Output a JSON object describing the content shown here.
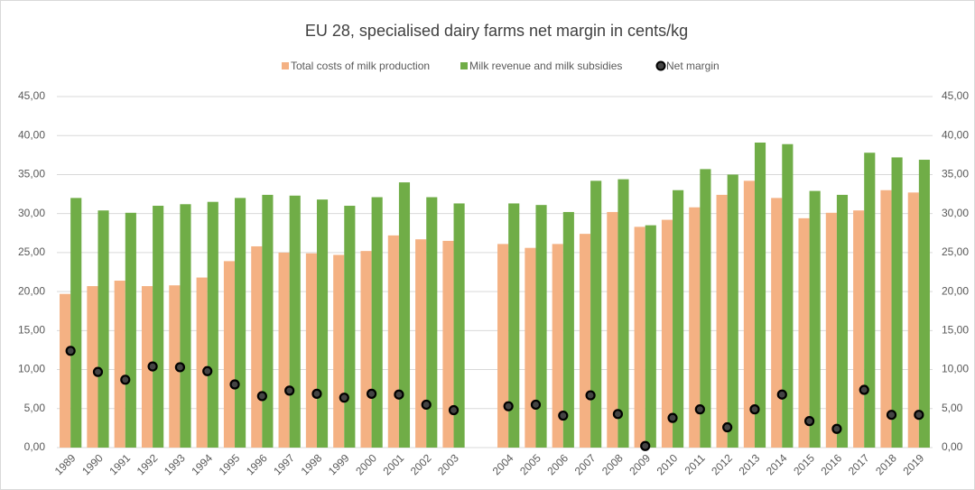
{
  "chart_data": {
    "type": "bar",
    "title": "EU 28, specialised dairy farms net margin in cents/kg",
    "categories": [
      "1989",
      "1990",
      "1991",
      "1992",
      "1993",
      "1994",
      "1995",
      "1996",
      "1997",
      "1998",
      "1999",
      "2000",
      "2001",
      "2002",
      "2003",
      null,
      "2004",
      "2005",
      "2006",
      "2007",
      "2008",
      "2009",
      "2010",
      "2011",
      "2012",
      "2013",
      "2014",
      "2015",
      "2016",
      "2017",
      "2018",
      "2019"
    ],
    "series": [
      {
        "name": "Total costs of milk production",
        "color": "#f4b183",
        "type": "bar",
        "values": [
          19.7,
          20.7,
          21.4,
          20.7,
          20.8,
          21.8,
          23.9,
          25.8,
          25.0,
          24.9,
          24.7,
          25.2,
          27.2,
          26.7,
          26.5,
          null,
          26.1,
          25.6,
          26.1,
          27.4,
          30.2,
          28.3,
          29.2,
          30.8,
          32.4,
          34.2,
          32.0,
          29.4,
          30.1,
          30.4,
          33.0,
          32.7
        ]
      },
      {
        "name": "Milk revenue and milk subsidies",
        "color": "#70ad47",
        "type": "bar",
        "values": [
          32.0,
          30.4,
          30.1,
          31.0,
          31.2,
          31.5,
          32.0,
          32.4,
          32.3,
          31.8,
          31.0,
          32.1,
          34.0,
          32.1,
          31.3,
          null,
          31.3,
          31.1,
          30.2,
          34.2,
          34.4,
          28.5,
          33.0,
          35.7,
          35.0,
          39.1,
          38.9,
          32.9,
          32.4,
          37.8,
          37.2,
          36.9
        ]
      },
      {
        "name": "Net margin",
        "color": "#000000",
        "type": "scatter",
        "axis": "y2",
        "values": [
          12.4,
          9.7,
          8.7,
          10.4,
          10.3,
          9.8,
          8.1,
          6.6,
          7.3,
          6.9,
          6.4,
          6.9,
          6.8,
          5.5,
          4.8,
          null,
          5.3,
          5.5,
          4.1,
          6.7,
          4.3,
          0.2,
          3.8,
          4.9,
          2.6,
          4.9,
          6.8,
          3.4,
          2.4,
          7.4,
          4.2,
          4.2
        ]
      }
    ],
    "ylim": [
      0,
      45
    ],
    "yticks": [
      {
        "value": 0,
        "label": "0,00"
      },
      {
        "value": 5,
        "label": "5,00"
      },
      {
        "value": 10,
        "label": "10,00"
      },
      {
        "value": 15,
        "label": "15,00"
      },
      {
        "value": 20,
        "label": "20,00"
      },
      {
        "value": 25,
        "label": "25,00"
      },
      {
        "value": 30,
        "label": "30,00"
      },
      {
        "value": 35,
        "label": "35,00"
      },
      {
        "value": 40,
        "label": "40,00"
      },
      {
        "value": 45,
        "label": "45,00"
      }
    ],
    "y2lim": [
      0,
      45
    ],
    "y2ticks": [
      {
        "value": 0,
        "label": "0,00"
      },
      {
        "value": 5,
        "label": "5,00"
      },
      {
        "value": 10,
        "label": "10,00"
      },
      {
        "value": 15,
        "label": "15,00"
      },
      {
        "value": 20,
        "label": "20,00"
      },
      {
        "value": 25,
        "label": "25,00"
      },
      {
        "value": 30,
        "label": "30,00"
      },
      {
        "value": 35,
        "label": "35,00"
      },
      {
        "value": 40,
        "label": "40,00"
      },
      {
        "value": 45,
        "label": "45,00"
      }
    ],
    "grid": true,
    "legend": "top"
  }
}
